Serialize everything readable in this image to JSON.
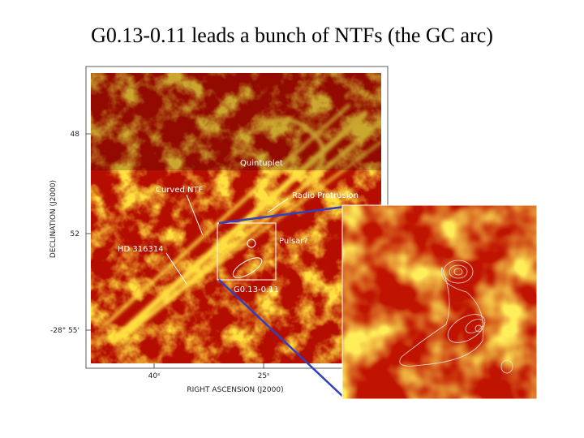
{
  "title": "G0.13-0.11 leads a bunch of NTFs (the GC arc)",
  "figure": {
    "y_axis": {
      "label": "DECLINATION (J2000)",
      "ticks": [
        "48",
        "52",
        "-28° 55'"
      ]
    },
    "x_axis": {
      "label": "RIGHT ASCENSION (J2000)",
      "ticks": [
        "40ˢ",
        "25ˢ"
      ]
    },
    "annotations": [
      "Quintuplet",
      "Curved NTF",
      "Radio Protrusion",
      "HD 316314",
      "Pulsar?",
      "G0.13-0.11"
    ]
  }
}
